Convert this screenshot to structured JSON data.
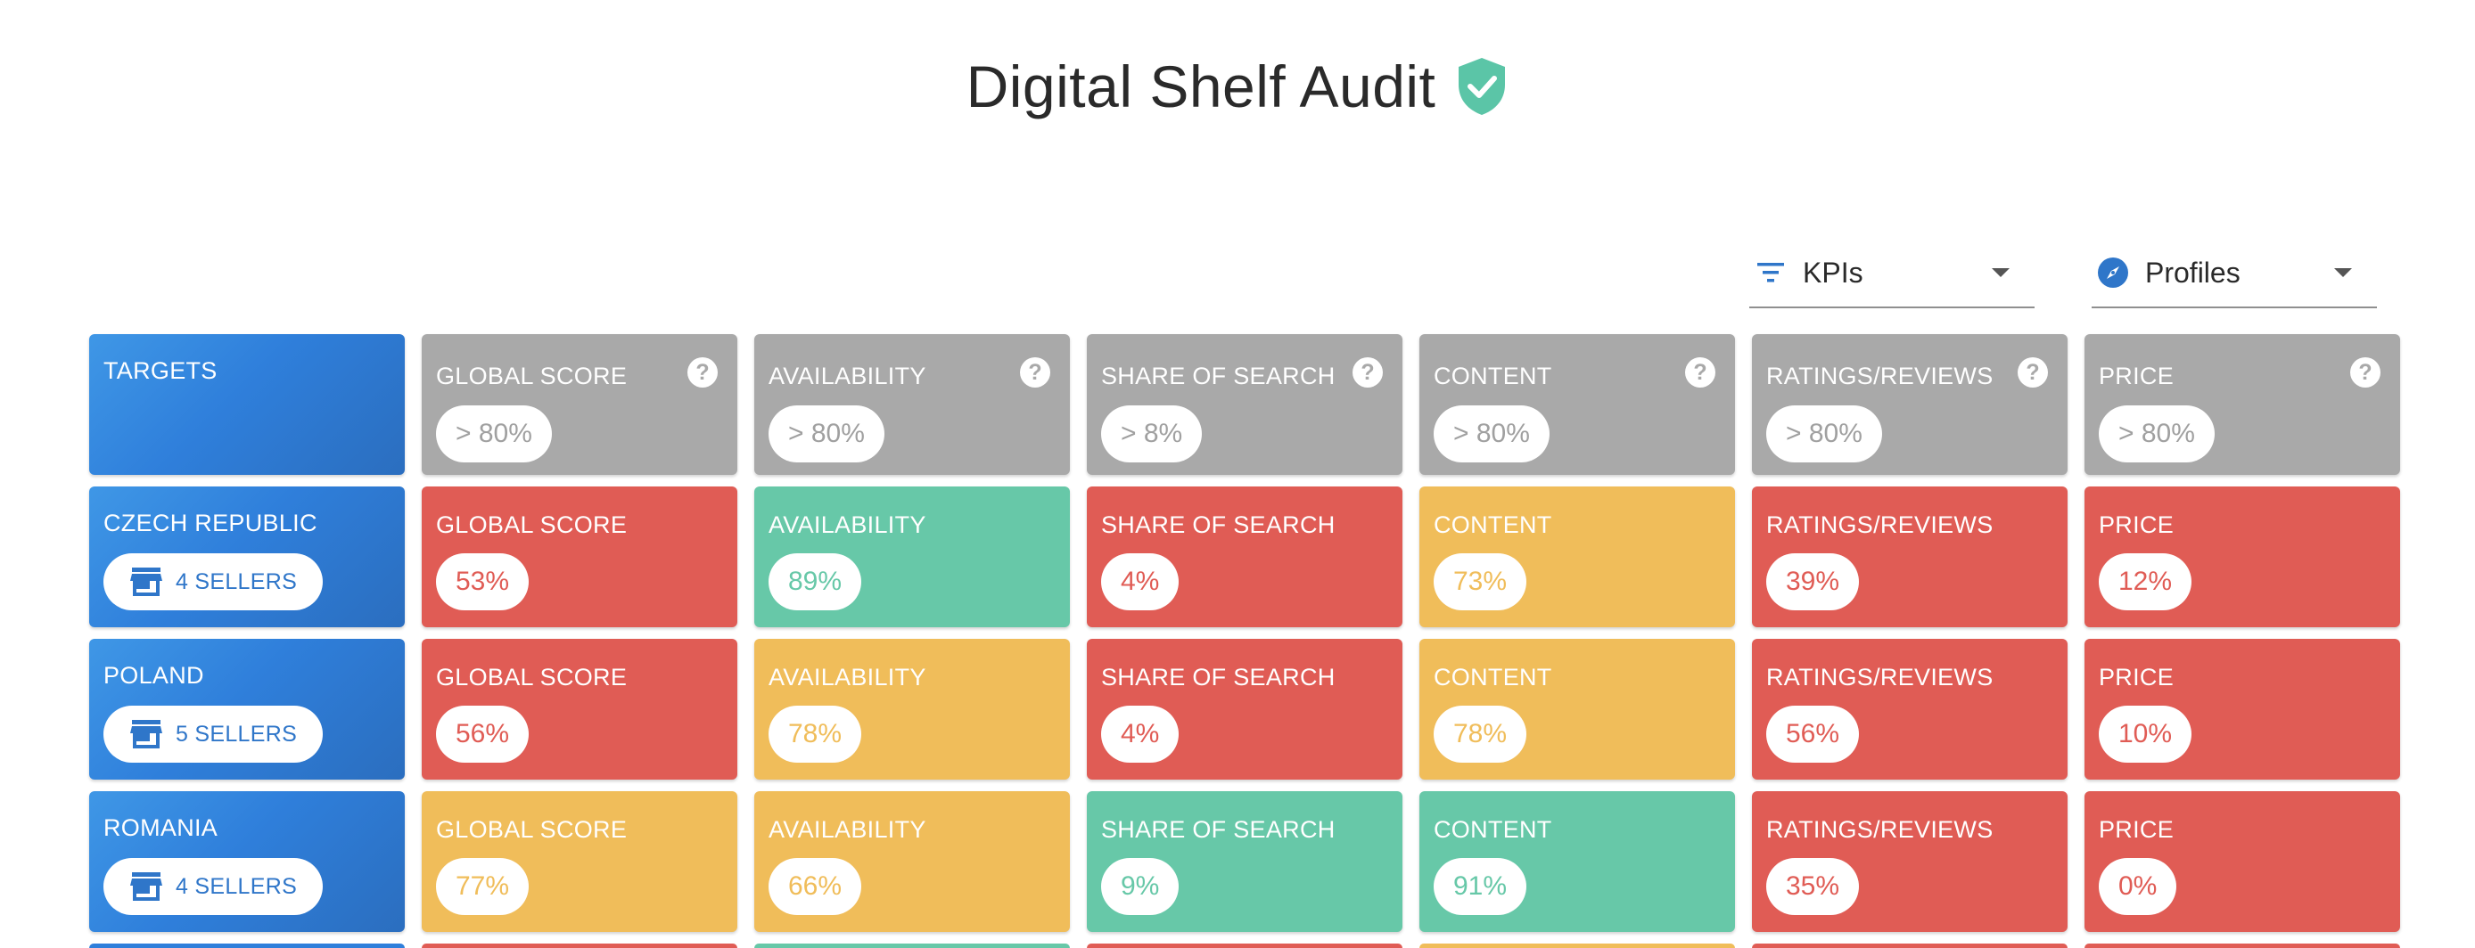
{
  "title": "Digital Shelf Audit",
  "colors": {
    "red": "#e05c55",
    "yellow": "#f0bd5a",
    "green": "#67c8a8",
    "grey": "#a9a9a9",
    "blue": "#2f7fdb",
    "accent_icon": "#5bc5a7"
  },
  "filters": {
    "kpis": {
      "label": "KPIs",
      "icon": "filter-lines-icon"
    },
    "profiles": {
      "label": "Profiles",
      "icon": "compass-icon"
    }
  },
  "targets": {
    "label": "TARGETS",
    "cells": [
      {
        "kpi": "GLOBAL SCORE",
        "value": "> 80%"
      },
      {
        "kpi": "AVAILABILITY",
        "value": "> 80%"
      },
      {
        "kpi": "SHARE OF SEARCH",
        "value": "> 8%"
      },
      {
        "kpi": "CONTENT",
        "value": "> 80%"
      },
      {
        "kpi": "RATINGS/REVIEWS",
        "value": "> 80%"
      },
      {
        "kpi": "PRICE",
        "value": "> 80%"
      }
    ]
  },
  "countries": [
    {
      "name": "CZECH REPUBLIC",
      "sellers": "4 SELLERS",
      "cells": [
        {
          "kpi": "GLOBAL SCORE",
          "value": "53%",
          "status": "red"
        },
        {
          "kpi": "AVAILABILITY",
          "value": "89%",
          "status": "green"
        },
        {
          "kpi": "SHARE OF SEARCH",
          "value": "4%",
          "status": "red"
        },
        {
          "kpi": "CONTENT",
          "value": "73%",
          "status": "yellow"
        },
        {
          "kpi": "RATINGS/REVIEWS",
          "value": "39%",
          "status": "red"
        },
        {
          "kpi": "PRICE",
          "value": "12%",
          "status": "red"
        }
      ]
    },
    {
      "name": "POLAND",
      "sellers": "5 SELLERS",
      "cells": [
        {
          "kpi": "GLOBAL SCORE",
          "value": "56%",
          "status": "red"
        },
        {
          "kpi": "AVAILABILITY",
          "value": "78%",
          "status": "yellow"
        },
        {
          "kpi": "SHARE OF SEARCH",
          "value": "4%",
          "status": "red"
        },
        {
          "kpi": "CONTENT",
          "value": "78%",
          "status": "yellow"
        },
        {
          "kpi": "RATINGS/REVIEWS",
          "value": "56%",
          "status": "red"
        },
        {
          "kpi": "PRICE",
          "value": "10%",
          "status": "red"
        }
      ]
    },
    {
      "name": "ROMANIA",
      "sellers": "4 SELLERS",
      "cells": [
        {
          "kpi": "GLOBAL SCORE",
          "value": "77%",
          "status": "yellow"
        },
        {
          "kpi": "AVAILABILITY",
          "value": "66%",
          "status": "yellow"
        },
        {
          "kpi": "SHARE OF SEARCH",
          "value": "9%",
          "status": "green"
        },
        {
          "kpi": "CONTENT",
          "value": "91%",
          "status": "green"
        },
        {
          "kpi": "RATINGS/REVIEWS",
          "value": "35%",
          "status": "red"
        },
        {
          "kpi": "PRICE",
          "value": "0%",
          "status": "red"
        }
      ]
    }
  ],
  "next_row_statuses": [
    "blue",
    "red",
    "green",
    "red",
    "yellow",
    "red",
    "red"
  ]
}
